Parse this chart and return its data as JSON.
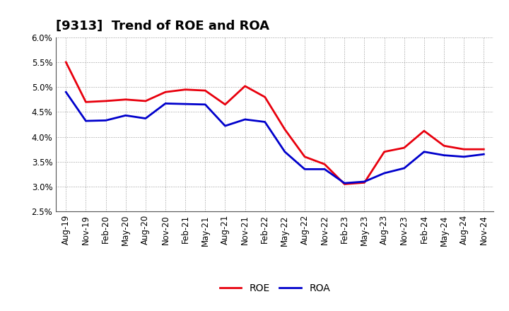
{
  "title": "[9313]  Trend of ROE and ROA",
  "labels": [
    "Aug-19",
    "Nov-19",
    "Feb-20",
    "May-20",
    "Aug-20",
    "Nov-20",
    "Feb-21",
    "May-21",
    "Aug-21",
    "Nov-21",
    "Feb-22",
    "May-22",
    "Aug-22",
    "Nov-22",
    "Feb-23",
    "May-23",
    "Aug-23",
    "Nov-23",
    "Feb-24",
    "May-24",
    "Aug-24",
    "Nov-24"
  ],
  "ROE": [
    5.5,
    4.7,
    4.72,
    4.75,
    4.72,
    4.9,
    4.95,
    4.93,
    4.65,
    5.02,
    4.8,
    4.15,
    3.6,
    3.45,
    3.05,
    3.08,
    3.7,
    3.78,
    4.12,
    3.82,
    3.75,
    3.75
  ],
  "ROA": [
    4.9,
    4.32,
    4.33,
    4.43,
    4.37,
    4.67,
    4.66,
    4.65,
    4.22,
    4.35,
    4.3,
    3.7,
    3.35,
    3.35,
    3.07,
    3.1,
    3.27,
    3.37,
    3.7,
    3.63,
    3.6,
    3.65
  ],
  "roe_color": "#e8000d",
  "roa_color": "#0000cc",
  "ylim_min": 2.5,
  "ylim_max": 6.0,
  "yticks": [
    2.5,
    3.0,
    3.5,
    4.0,
    4.5,
    5.0,
    5.5,
    6.0
  ],
  "bg_color": "#ffffff",
  "plot_bg_color": "#ffffff",
  "grid_color": "#999999",
  "line_width": 2.0,
  "title_fontsize": 13,
  "tick_fontsize": 8.5,
  "legend_fontsize": 10
}
